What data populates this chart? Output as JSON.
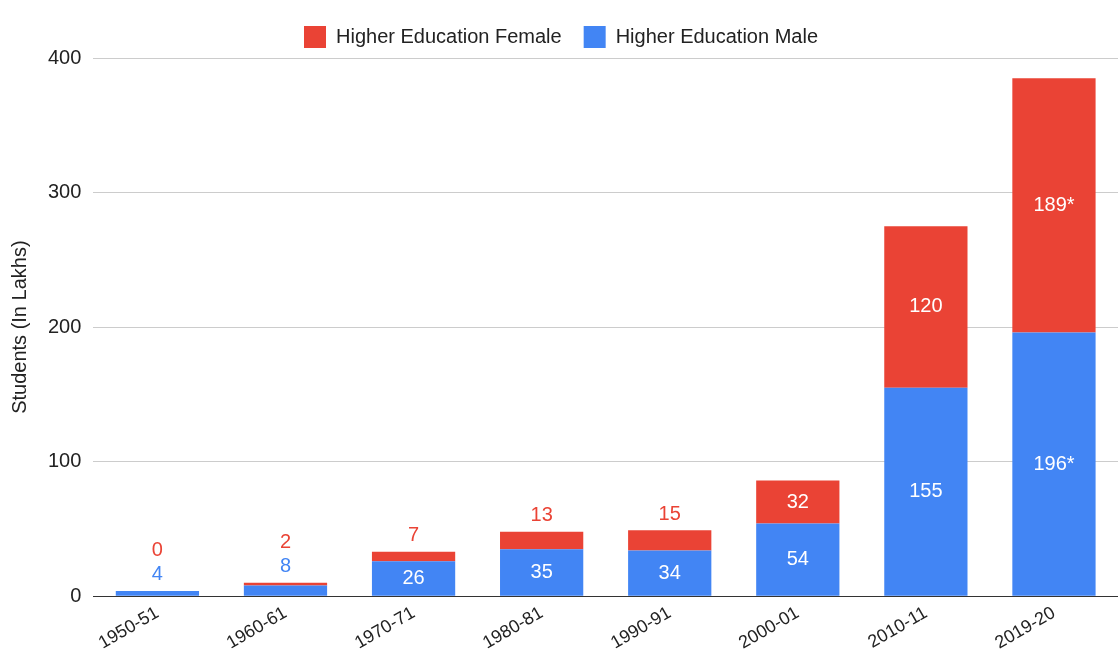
{
  "chart_data": {
    "type": "bar",
    "stacked": true,
    "ylabel": "Students (In Lakhs)",
    "categories": [
      "1950-51",
      "1960-61",
      "1970-71",
      "1980-81",
      "1990-91",
      "2000-01",
      "2010-11",
      "2019-20"
    ],
    "series": [
      {
        "name": "Higher Education Male",
        "color": "#4285f4",
        "values": [
          4,
          8,
          26,
          35,
          34,
          54,
          155,
          196
        ],
        "value_labels": [
          "4",
          "8",
          "26",
          "35",
          "34",
          "54",
          "155",
          "196*"
        ]
      },
      {
        "name": "Higher Education Female",
        "color": "#ea4335",
        "values": [
          0,
          2,
          7,
          13,
          15,
          32,
          120,
          189
        ],
        "value_labels": [
          "0",
          "2",
          "7",
          "13",
          "15",
          "32",
          "120",
          "189*"
        ]
      }
    ],
    "ylim": [
      0,
      400
    ],
    "yticks": [
      0,
      100,
      200,
      300,
      400
    ],
    "grid": "y",
    "legend": "top"
  }
}
